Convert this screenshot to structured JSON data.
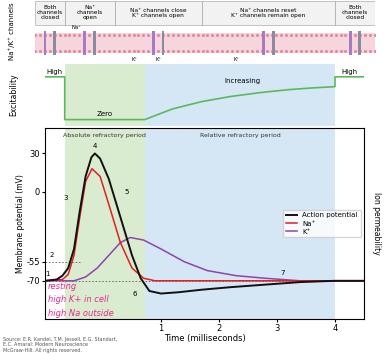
{
  "channel_panel": {
    "label": "Na⁺/K⁺ channels",
    "states": [
      {
        "text": "Both\nchannels\nclosed",
        "end": -0.66
      },
      {
        "text": "Na⁺\nchannels\nopen",
        "end": 0.2
      },
      {
        "text": "Na⁺ channels close\nK⁺ channels open",
        "end": 1.7
      },
      {
        "text": "Na⁺ channels reset\nK⁺ channels remain open",
        "end": 4.0
      },
      {
        "text": "Both\nchannels\nclosed",
        "end": null
      }
    ],
    "ion_labels": [
      {
        "text": "Na⁺",
        "x": -0.45,
        "side": "top"
      },
      {
        "text": "K⁺",
        "x": 0.55,
        "side": "bottom"
      },
      {
        "text": "K⁺",
        "x": 0.95,
        "side": "bottom"
      },
      {
        "text": "K⁺",
        "x": 2.3,
        "side": "bottom"
      }
    ]
  },
  "excitability": {
    "label": "Excitability",
    "color": "#5cb85c",
    "x": [
      -1,
      -0.66,
      -0.66,
      0.72,
      1.2,
      1.7,
      2.2,
      2.7,
      3.2,
      3.6,
      4.0,
      4.0,
      4.5
    ],
    "values": [
      1,
      1,
      0,
      0,
      0.25,
      0.42,
      0.54,
      0.63,
      0.7,
      0.74,
      0.77,
      1,
      1
    ],
    "texts": [
      {
        "text": "High",
        "x": -0.83,
        "y": 1.12
      },
      {
        "text": "Zero",
        "x": 0.03,
        "y": 0.12
      },
      {
        "text": "Increasing",
        "x": 2.4,
        "y": 0.9
      },
      {
        "text": "High",
        "x": 4.25,
        "y": 1.12
      }
    ]
  },
  "chart_data": {
    "type": "line",
    "xlabel": "Time (milliseconds)",
    "ylabel": "Membrane potential (mV)",
    "y2label": "Ion permeability",
    "xlim": [
      -1,
      4.5
    ],
    "xticks": [
      1,
      2,
      3,
      4
    ],
    "ylim": [
      -100,
      50
    ],
    "yticks": [
      30,
      0,
      -55,
      -70
    ],
    "legend": "center right",
    "periods": [
      {
        "name": "Absolute refractory period",
        "start": -0.66,
        "end": 0.72,
        "color": "#d9ecd0"
      },
      {
        "name": "Relative refractory period",
        "start": 0.72,
        "end": 4.0,
        "color": "#d5e7f5"
      }
    ],
    "dashed_lines": [
      {
        "y": -55,
        "x": [
          -1,
          -0.4
        ]
      },
      {
        "y": -70,
        "x": [
          -1,
          4.5
        ]
      }
    ],
    "series": [
      {
        "name": "Action potential",
        "color": "#111111",
        "x": [
          -1,
          -0.8,
          -0.7,
          -0.6,
          -0.5,
          -0.4,
          -0.3,
          -0.2,
          -0.14,
          -0.05,
          0.1,
          0.3,
          0.5,
          0.65,
          0.8,
          1.0,
          1.3,
          1.7,
          2.2,
          2.8,
          3.4,
          4.0,
          4.5
        ],
        "values": [
          -70,
          -69,
          -66,
          -60,
          -45,
          -15,
          12,
          27,
          30,
          26,
          10,
          -20,
          -50,
          -68,
          -78,
          -80,
          -79,
          -77,
          -75,
          -73,
          -71,
          -70,
          -70
        ]
      },
      {
        "name": "Na⁺",
        "color": "#e02020",
        "x": [
          -1,
          -0.7,
          -0.6,
          -0.5,
          -0.4,
          -0.3,
          -0.19,
          -0.05,
          0.1,
          0.3,
          0.5,
          0.7,
          0.9,
          4.5
        ],
        "values": [
          -70,
          -69,
          -65,
          -50,
          -20,
          8,
          18,
          12,
          -10,
          -40,
          -60,
          -68,
          -70,
          -70
        ]
      },
      {
        "name": "K⁺",
        "color": "#8e44ad",
        "x": [
          -1,
          -0.5,
          -0.3,
          -0.1,
          0.1,
          0.3,
          0.47,
          0.7,
          1.0,
          1.4,
          1.8,
          2.3,
          2.8,
          3.4,
          4.0,
          4.5
        ],
        "values": [
          -70,
          -70,
          -67,
          -60,
          -50,
          -40,
          -36,
          -38,
          -45,
          -55,
          -62,
          -66,
          -68,
          -70,
          -70,
          -70
        ]
      }
    ],
    "annotations": [
      {
        "text": "1",
        "x": -0.95,
        "y": -65
      },
      {
        "text": "2",
        "x": -0.88,
        "y": -50
      },
      {
        "text": "3",
        "x": -0.65,
        "y": -5
      },
      {
        "text": "4",
        "x": -0.14,
        "y": 36
      },
      {
        "text": "5",
        "x": 0.4,
        "y": 0
      },
      {
        "text": "6",
        "x": 0.55,
        "y": -80
      },
      {
        "text": "7",
        "x": 3.1,
        "y": -64
      }
    ]
  },
  "handwritten_notes": {
    "color": "#e8288c",
    "texts": [
      "resting",
      "high K+ in cell",
      "high Na outside"
    ]
  },
  "source": "Source: E.R. Kandel, T.M. Jessell, E.G. Standart,\nE.C. Amaral: Modern Neuroscience\nMcGraw-Hill. All rights reserved."
}
